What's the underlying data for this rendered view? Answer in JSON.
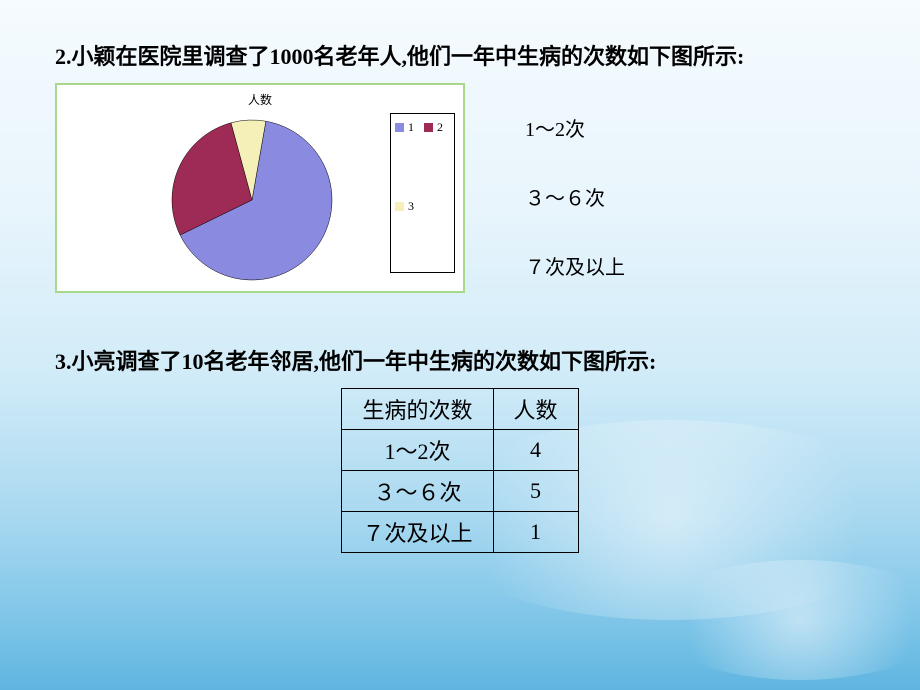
{
  "background": {
    "gradient_top": "#f5fbff",
    "gradient_bottom": "#5fb5e0"
  },
  "question2": {
    "text": "2.小颖在医院里调查了1000名老年人,他们一年中生病的次数如下图所示:"
  },
  "chart": {
    "type": "pie",
    "title": "人数",
    "title_fontsize": 12,
    "background_color": "#ffffff",
    "border_color": "#a8d98a",
    "radius": 80,
    "slices": [
      {
        "label": "1",
        "value": 65,
        "color": "#8a8ae0"
      },
      {
        "label": "2",
        "value": 28,
        "color": "#9e2b55"
      },
      {
        "label": "3",
        "value": 7,
        "color": "#f5f0b8"
      }
    ],
    "start_angle_deg": -80,
    "legend": {
      "items": [
        {
          "swatch": "#8a8ae0",
          "label": "1"
        },
        {
          "swatch": "#9e2b55",
          "label": "2"
        },
        {
          "swatch": "#f5f0b8",
          "label": "3"
        }
      ],
      "border_color": "#000000",
      "fontsize": 12
    }
  },
  "side_labels": {
    "items": [
      "1～2次",
      "３～６次",
      "７次及以上"
    ],
    "fontsize": 20
  },
  "question3": {
    "text": "3.小亮调查了10名老年邻居,他们一年中生病的次数如下图所示:"
  },
  "table": {
    "type": "table",
    "columns": [
      "生病的次数",
      "人数"
    ],
    "rows": [
      [
        "1～2次",
        "4"
      ],
      [
        "３～６次",
        "5"
      ],
      [
        "７次及以上",
        "1"
      ]
    ],
    "border_color": "#000000",
    "cell_fontsize": 22
  }
}
